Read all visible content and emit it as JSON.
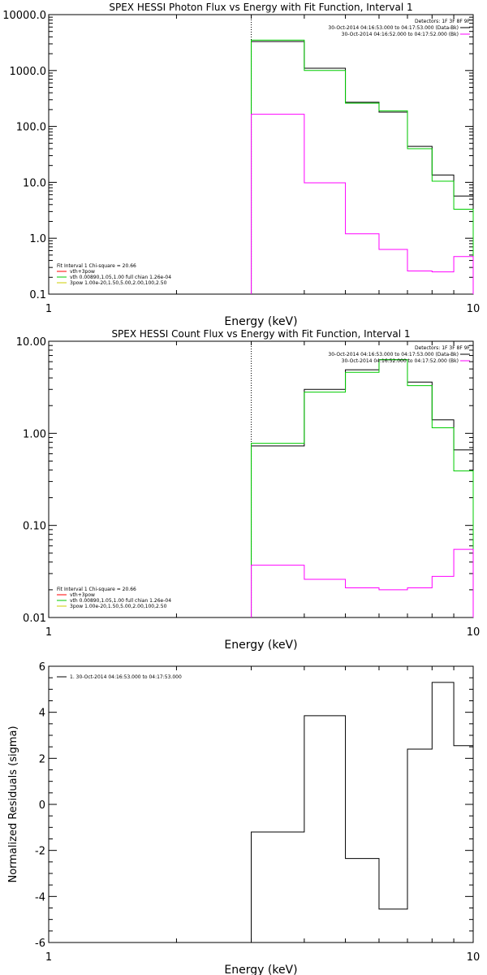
{
  "chart_data": [
    {
      "type": "line",
      "title": "SPEX HESSI Photon Flux vs Energy with Fit Function, Interval 1",
      "xlabel": "Energy (keV)",
      "ylabel": "",
      "xscale": "log",
      "yscale": "log",
      "xlim": [
        1,
        10
      ],
      "ylim": [
        0.1,
        10000
      ],
      "xticks": [
        "1",
        "10"
      ],
      "yticks": [
        "10000.0",
        "1000.0",
        "100.0",
        "10.0",
        "1.0",
        "0.1"
      ],
      "marker_line_x": 3.0,
      "legend_top": {
        "header": "Detectors: 1F 3F 8F 9F",
        "entries": [
          {
            "label": "30-Oct-2014 04:16:53.000 to 04:17:53.000 (Data-Bk)",
            "color": "#000000"
          },
          {
            "label": "30-Oct-2014 04:16:52.000 to 04:17:52.000 (Bk)",
            "color": "#ff00ff"
          }
        ]
      },
      "legend_bottom": {
        "header": "Fit Interval 1   Chi-square = 20.66",
        "entries": [
          {
            "label": "vth+3pow",
            "color": "#ff0000"
          },
          {
            "label": "vth 0.00890,1.05,1.00  full chian 1.26e-04",
            "color": "#00cc00"
          },
          {
            "label": "3pow 1.00e-20,1.50,5.00,2.00,100,2.50",
            "color": "#cccc00"
          }
        ]
      },
      "edges": [
        3.0,
        4.0,
        5.0,
        6.0,
        7.0,
        8.0,
        9.0,
        10.0
      ],
      "series": [
        {
          "color": "#000000",
          "values": [
            3300,
            1100,
            270,
            180,
            44,
            13.5,
            5.7
          ]
        },
        {
          "color": "#00cc00",
          "values": [
            3500,
            1000,
            260,
            190,
            40,
            10.5,
            3.3
          ]
        },
        {
          "color": "#ff00ff",
          "values": [
            165,
            9.8,
            1.2,
            0.63,
            0.26,
            0.25,
            0.47
          ]
        }
      ]
    },
    {
      "type": "line",
      "title": "SPEX HESSI Count Flux vs Energy with Fit Function, Interval 1",
      "xlabel": "Energy (keV)",
      "ylabel": "",
      "xscale": "log",
      "yscale": "log",
      "xlim": [
        1,
        10
      ],
      "ylim": [
        0.01,
        10
      ],
      "xticks": [
        "1",
        "10"
      ],
      "yticks": [
        "10.00",
        "1.00",
        "0.10",
        "0.01"
      ],
      "marker_line_x": 3.0,
      "legend_top": {
        "header": "Detectors: 1F 3F 8F 9F",
        "entries": [
          {
            "label": "30-Oct-2014 04:16:53.000 to 04:17:53.000 (Data-Bk)",
            "color": "#000000"
          },
          {
            "label": "30-Oct-2014 04:16:52.000 to 04:17:52.000 (Bk)",
            "color": "#ff00ff"
          }
        ]
      },
      "legend_bottom": {
        "header": "Fit Interval 1   Chi-square = 20.66",
        "entries": [
          {
            "label": "vth+3pow",
            "color": "#ff0000"
          },
          {
            "label": "vth 0.00890,1.05,1.00  full chian 1.26e-04",
            "color": "#00cc00"
          },
          {
            "label": "3pow 1.00e-20,1.50,5.00,2.00,100,2.50",
            "color": "#cccc00"
          }
        ]
      },
      "edges": [
        3.0,
        4.0,
        5.0,
        6.0,
        7.0,
        8.0,
        9.0,
        10.0
      ],
      "series": [
        {
          "color": "#000000",
          "values": [
            0.73,
            3.0,
            4.9,
            6.3,
            3.6,
            1.4,
            0.66
          ]
        },
        {
          "color": "#00cc00",
          "values": [
            0.78,
            2.8,
            4.6,
            6.3,
            3.3,
            1.15,
            0.39
          ]
        },
        {
          "color": "#ff00ff",
          "values": [
            0.037,
            0.026,
            0.021,
            0.02,
            0.021,
            0.028,
            0.055
          ]
        }
      ]
    },
    {
      "type": "line",
      "title": "",
      "xlabel": "Energy (keV)",
      "ylabel": "Normalized Residuals (sigma)",
      "xscale": "log",
      "yscale": "linear",
      "xlim": [
        1,
        10
      ],
      "ylim": [
        -6,
        6
      ],
      "xticks": [
        "1",
        "10"
      ],
      "yticks": [
        "6",
        "4",
        "2",
        "0",
        "-2",
        "-4",
        "-6"
      ],
      "legend": {
        "entries": [
          {
            "label": "1. 30-Oct-2014 04:16:53.000 to 04:17:53.000",
            "color": "#000000"
          }
        ]
      },
      "edges": [
        3.0,
        4.0,
        5.0,
        6.0,
        7.0,
        8.0,
        9.0,
        10.0
      ],
      "series": [
        {
          "color": "#000000",
          "values": [
            -1.2,
            3.85,
            -2.35,
            -4.55,
            2.4,
            5.3,
            2.55
          ]
        }
      ]
    }
  ]
}
